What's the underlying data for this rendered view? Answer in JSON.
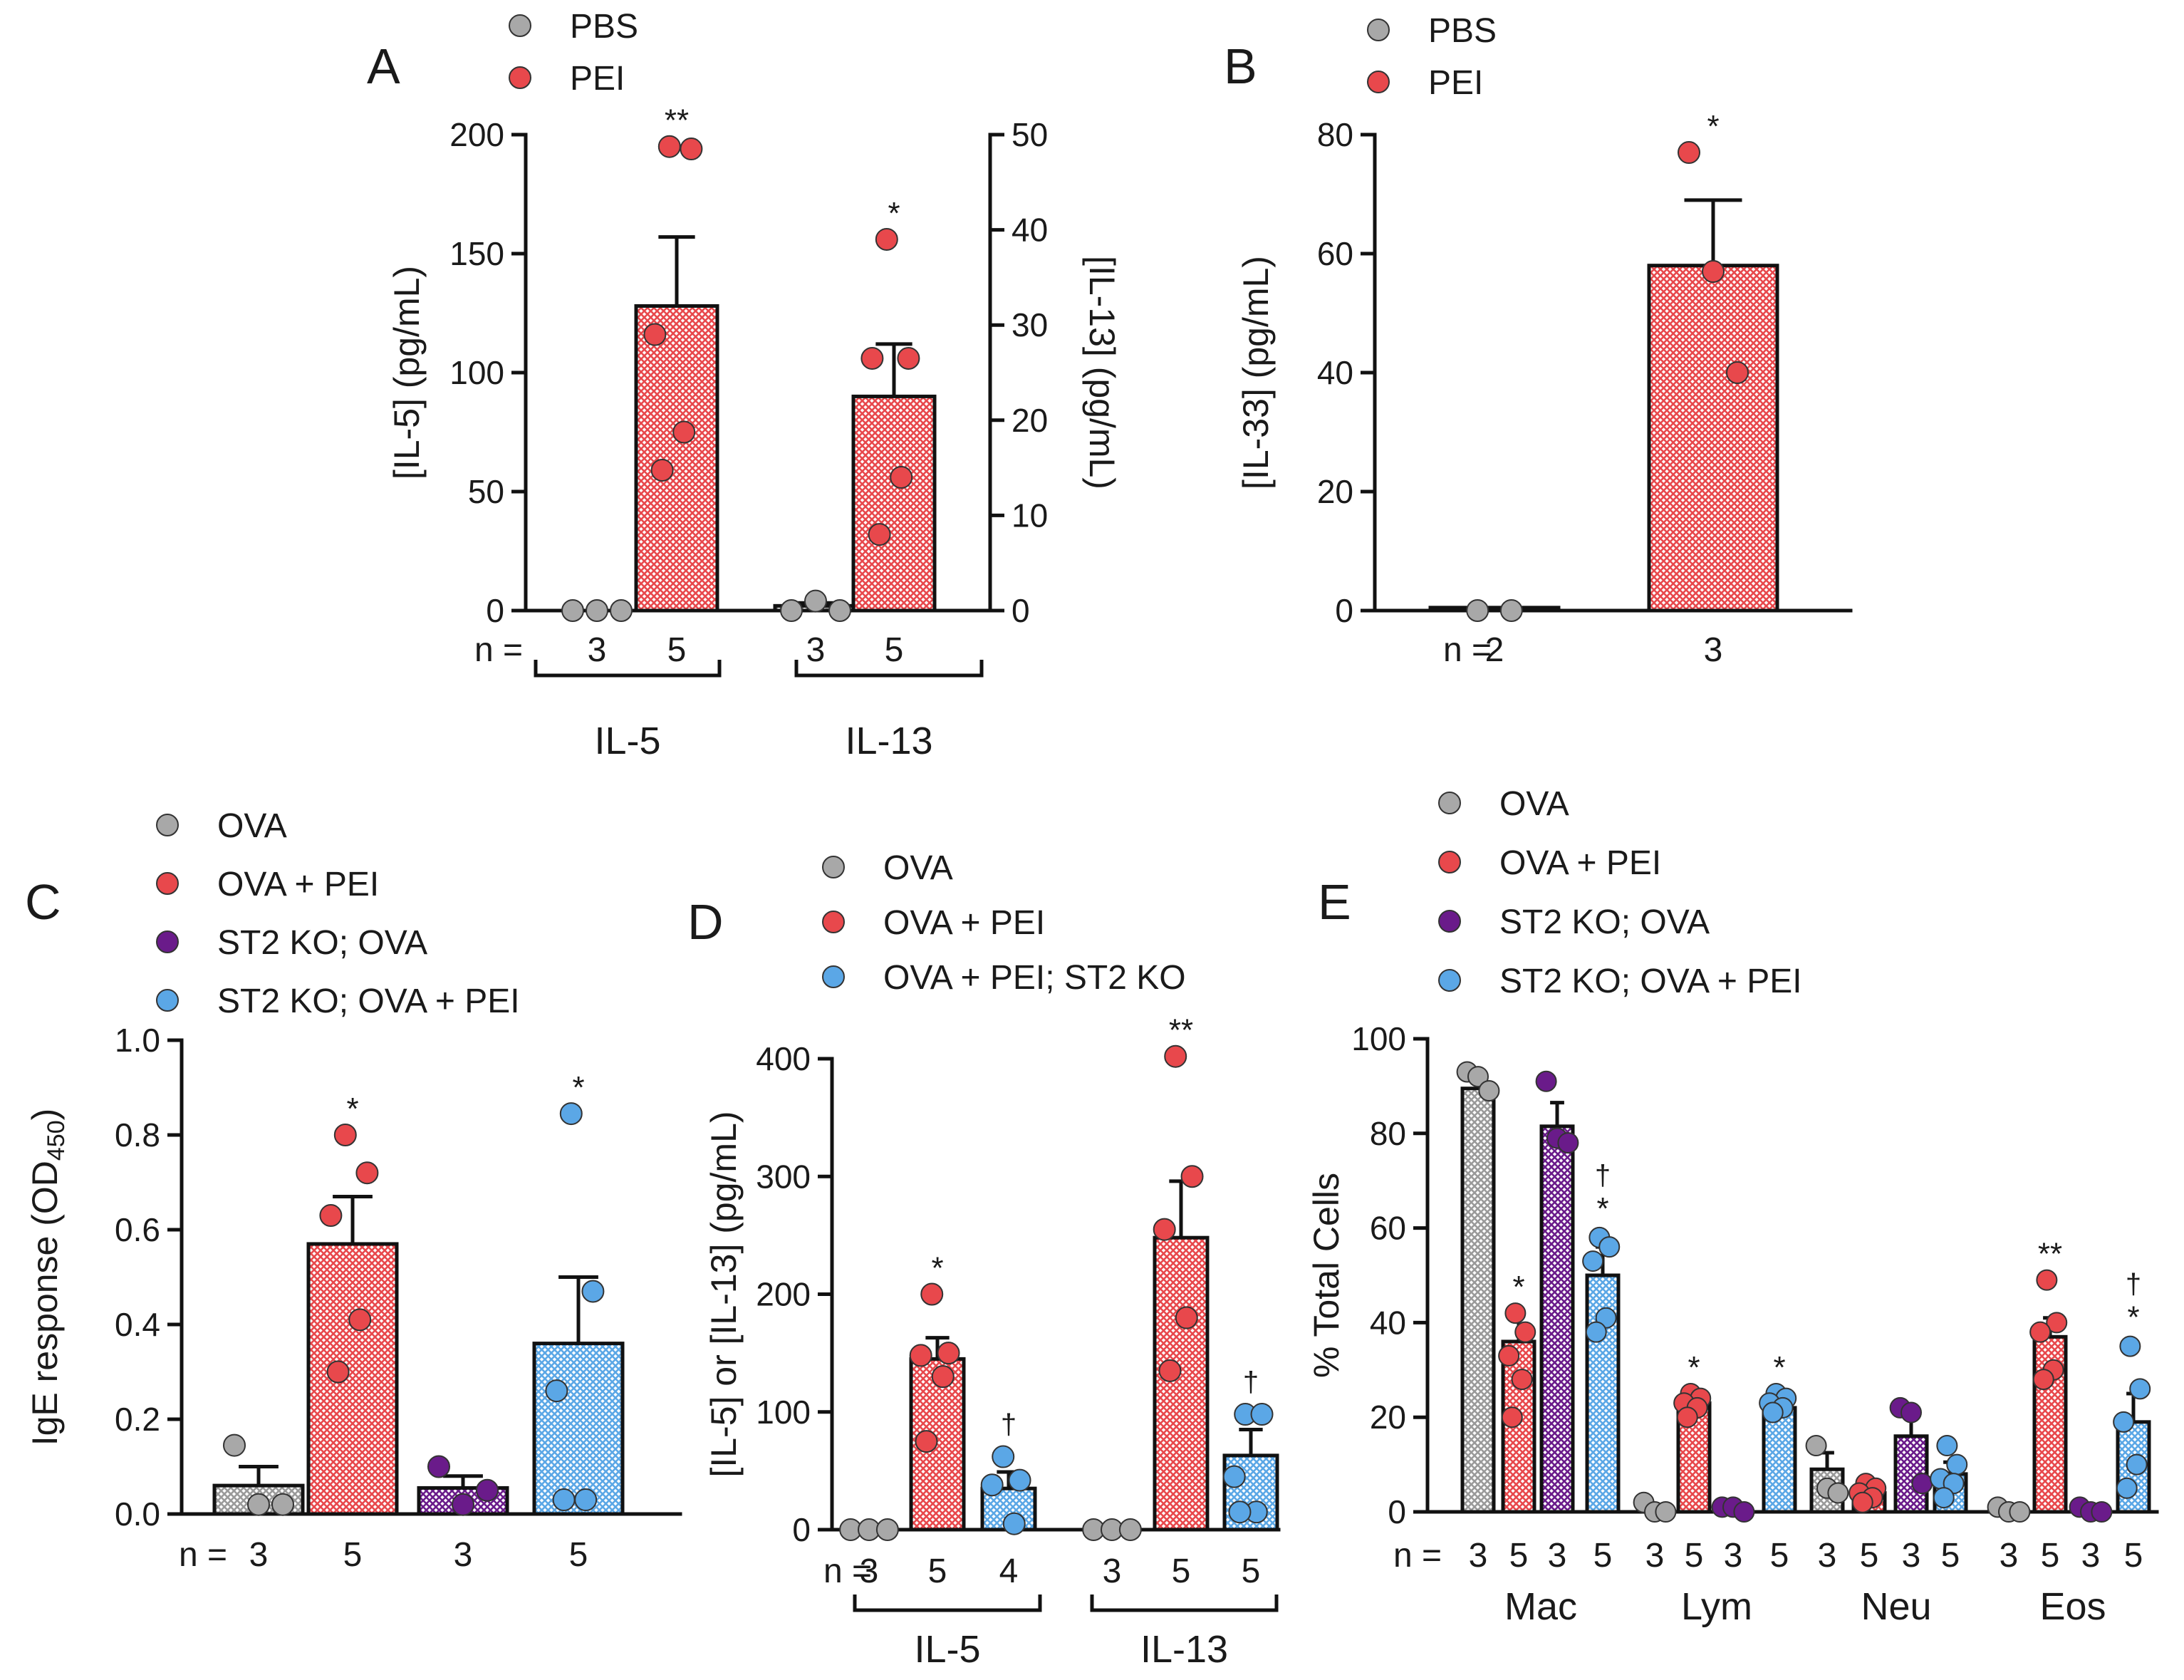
{
  "colors": {
    "gray": "#a8a8a8",
    "red": "#e8484c",
    "purple": "#6a1b8a",
    "blue": "#5ba7e6"
  },
  "chart_data": [
    {
      "id": "A",
      "panel_label": "A",
      "type": "bar",
      "legend": [
        {
          "label": "PBS",
          "color": "gray"
        },
        {
          "label": "PEI",
          "color": "red"
        }
      ],
      "ylabel": "[IL-5] (pg/mL)",
      "ylim": [
        0,
        200
      ],
      "yticks": [
        "0",
        "50",
        "100",
        "150",
        "200"
      ],
      "ylabel_right": "[IL-13] (pg/mL)",
      "ylim_right": [
        0,
        50
      ],
      "yticks_right": [
        "0",
        "10",
        "20",
        "30",
        "40",
        "50"
      ],
      "n_prefix": "n =",
      "groups": [
        "IL-5",
        "IL-13"
      ],
      "bars": [
        {
          "group": "IL-5",
          "series": "PBS",
          "color": "gray",
          "axis": "left",
          "mean": 0,
          "sem": 0,
          "n": "3",
          "points": [
            0,
            0,
            0
          ],
          "sig": ""
        },
        {
          "group": "IL-5",
          "series": "PEI",
          "color": "red",
          "axis": "left",
          "mean": 128,
          "sem": 29,
          "n": "5",
          "points": [
            195,
            194,
            116,
            75,
            59
          ],
          "sig": "**"
        },
        {
          "group": "IL-13",
          "series": "PBS",
          "color": "gray",
          "axis": "right",
          "mean": 0.5,
          "sem": 0.3,
          "n": "3",
          "points": [
            0,
            1,
            0
          ],
          "sig": ""
        },
        {
          "group": "IL-13",
          "series": "PEI",
          "color": "red",
          "axis": "right",
          "mean": 22.5,
          "sem": 5.5,
          "n": "5",
          "points": [
            39,
            26.5,
            26.5,
            14,
            8
          ],
          "sig": "*"
        }
      ]
    },
    {
      "id": "B",
      "panel_label": "B",
      "type": "bar",
      "legend": [
        {
          "label": "PBS",
          "color": "gray"
        },
        {
          "label": "PEI",
          "color": "red"
        }
      ],
      "ylabel": "[IL-33] (pg/mL)",
      "ylim": [
        0,
        80
      ],
      "yticks": [
        "0",
        "20",
        "40",
        "60",
        "80"
      ],
      "n_prefix": "n =",
      "bars": [
        {
          "series": "PBS",
          "color": "gray",
          "mean": 0.5,
          "sem": 0,
          "n": "2",
          "points": [
            0,
            0
          ],
          "sig": ""
        },
        {
          "series": "PEI",
          "color": "red",
          "mean": 58,
          "sem": 11,
          "n": "3",
          "points": [
            77,
            57,
            40
          ],
          "sig": "*"
        }
      ]
    },
    {
      "id": "C",
      "panel_label": "C",
      "type": "bar",
      "legend": [
        {
          "label": "OVA",
          "color": "gray"
        },
        {
          "label": "OVA + PEI",
          "color": "red"
        },
        {
          "label": "ST2 KO; OVA",
          "color": "purple"
        },
        {
          "label": "ST2 KO; OVA + PEI",
          "color": "blue"
        }
      ],
      "ylabel": "IgE response (OD",
      "ylabel_sub": "450",
      "ylabel_tail": ")",
      "ylim": [
        0,
        1.0
      ],
      "yticks": [
        "0.0",
        "0.2",
        "0.4",
        "0.6",
        "0.8",
        "1.0"
      ],
      "n_prefix": "n =",
      "bars": [
        {
          "series": "OVA",
          "color": "gray",
          "mean": 0.06,
          "sem": 0.04,
          "n": "3",
          "points": [
            0.145,
            0.02,
            0.02
          ],
          "sig": ""
        },
        {
          "series": "OVA + PEI",
          "color": "red",
          "mean": 0.57,
          "sem": 0.1,
          "n": "5",
          "points": [
            0.8,
            0.72,
            0.63,
            0.41,
            0.3
          ],
          "sig": "*"
        },
        {
          "series": "ST2 KO; OVA",
          "color": "purple",
          "mean": 0.055,
          "sem": 0.025,
          "n": "3",
          "points": [
            0.1,
            0.02,
            0.05
          ],
          "sig": ""
        },
        {
          "series": "ST2 KO; OVA + PEI",
          "color": "blue",
          "mean": 0.36,
          "sem": 0.14,
          "n": "5",
          "points": [
            0.845,
            0.47,
            0.26,
            0.03,
            0.03
          ],
          "sig": "*"
        }
      ]
    },
    {
      "id": "D",
      "panel_label": "D",
      "type": "bar",
      "legend": [
        {
          "label": "OVA",
          "color": "gray"
        },
        {
          "label": "OVA + PEI",
          "color": "red"
        },
        {
          "label": "OVA + PEI; ST2 KO",
          "color": "blue"
        }
      ],
      "ylabel": "[IL-5] or [IL-13] (pg/mL)",
      "ylim": [
        0,
        400
      ],
      "yticks": [
        "0",
        "100",
        "200",
        "300",
        "400"
      ],
      "n_prefix": "n =",
      "groups": [
        "IL-5",
        "IL-13"
      ],
      "bars": [
        {
          "group": "IL-5",
          "series": "OVA",
          "color": "gray",
          "mean": 0,
          "sem": 0,
          "n": "3",
          "points": [
            0,
            0,
            0
          ],
          "sig": ""
        },
        {
          "group": "IL-5",
          "series": "OVA + PEI",
          "color": "red",
          "mean": 145,
          "sem": 18,
          "n": "5",
          "points": [
            200,
            150,
            148,
            130,
            75
          ],
          "sig": "*"
        },
        {
          "group": "IL-5",
          "series": "OVA + PEI; ST2 KO",
          "color": "blue",
          "mean": 35,
          "sem": 14,
          "n": "4",
          "points": [
            62,
            42,
            38,
            5
          ],
          "sig": "†"
        },
        {
          "group": "IL-13",
          "series": "OVA",
          "color": "gray",
          "mean": 0,
          "sem": 0,
          "n": "3",
          "points": [
            0,
            0,
            0
          ],
          "sig": ""
        },
        {
          "group": "IL-13",
          "series": "OVA + PEI",
          "color": "red",
          "mean": 248,
          "sem": 48,
          "n": "5",
          "points": [
            402,
            300,
            255,
            180,
            135
          ],
          "sig": "**"
        },
        {
          "group": "IL-13",
          "series": "OVA + PEI; ST2 KO",
          "color": "blue",
          "mean": 63,
          "sem": 22,
          "n": "5",
          "points": [
            98,
            98,
            45,
            15,
            15
          ],
          "sig": "†"
        }
      ]
    },
    {
      "id": "E",
      "panel_label": "E",
      "type": "bar",
      "legend": [
        {
          "label": "OVA",
          "color": "gray"
        },
        {
          "label": "OVA + PEI",
          "color": "red"
        },
        {
          "label": "ST2 KO; OVA",
          "color": "purple"
        },
        {
          "label": "ST2 KO; OVA + PEI",
          "color": "blue"
        }
      ],
      "ylabel": "% Total Cells",
      "ylim": [
        0,
        100
      ],
      "yticks": [
        "0",
        "20",
        "40",
        "60",
        "80",
        "100"
      ],
      "n_prefix": "n =",
      "groups": [
        "Mac",
        "Lym",
        "Neu",
        "Eos"
      ],
      "bars": [
        {
          "group": "Mac",
          "series": "OVA",
          "color": "gray",
          "mean": 89.5,
          "sem": 2,
          "n": "3",
          "points": [
            93,
            92,
            89
          ],
          "sig": ""
        },
        {
          "group": "Mac",
          "series": "OVA + PEI",
          "color": "red",
          "mean": 36,
          "sem": 6,
          "n": "5",
          "points": [
            42,
            38,
            33,
            28,
            20
          ],
          "sig": "*"
        },
        {
          "group": "Mac",
          "series": "ST2 KO; OVA",
          "color": "purple",
          "mean": 81.5,
          "sem": 5,
          "n": "3",
          "points": [
            91,
            79,
            78
          ],
          "sig": ""
        },
        {
          "group": "Mac",
          "series": "ST2 KO; OVA + PEI",
          "color": "blue",
          "mean": 50,
          "sem": 6,
          "n": "5",
          "points": [
            58,
            56,
            53,
            41,
            38
          ],
          "sig": "*†"
        },
        {
          "group": "Lym",
          "series": "OVA",
          "color": "gray",
          "mean": 0.5,
          "sem": 0.3,
          "n": "3",
          "points": [
            2,
            0,
            0
          ],
          "sig": ""
        },
        {
          "group": "Lym",
          "series": "OVA + PEI",
          "color": "red",
          "mean": 23,
          "sem": 1.5,
          "n": "5",
          "points": [
            25,
            24,
            23,
            22,
            20
          ],
          "sig": "*"
        },
        {
          "group": "Lym",
          "series": "ST2 KO; OVA",
          "color": "purple",
          "mean": 0.5,
          "sem": 0.3,
          "n": "3",
          "points": [
            1,
            1,
            0
          ],
          "sig": ""
        },
        {
          "group": "Lym",
          "series": "ST2 KO; OVA + PEI",
          "color": "blue",
          "mean": 22,
          "sem": 1,
          "n": "5",
          "points": [
            25,
            24,
            23,
            22,
            21
          ],
          "sig": "*"
        },
        {
          "group": "Neu",
          "series": "OVA",
          "color": "gray",
          "mean": 9,
          "sem": 3.5,
          "n": "3",
          "points": [
            14,
            5,
            4
          ],
          "sig": ""
        },
        {
          "group": "Neu",
          "series": "OVA + PEI",
          "color": "red",
          "mean": 4,
          "sem": 1,
          "n": "5",
          "points": [
            6,
            5,
            4,
            3,
            2
          ],
          "sig": ""
        },
        {
          "group": "Neu",
          "series": "ST2 KO; OVA",
          "color": "purple",
          "mean": 16,
          "sem": 5,
          "n": "3",
          "points": [
            22,
            21,
            6
          ],
          "sig": ""
        },
        {
          "group": "Neu",
          "series": "ST2 KO; OVA + PEI",
          "color": "blue",
          "mean": 8,
          "sem": 2.5,
          "n": "5",
          "points": [
            14,
            10,
            7,
            6,
            3
          ],
          "sig": ""
        },
        {
          "group": "Eos",
          "series": "OVA",
          "color": "gray",
          "mean": 0.5,
          "sem": 0.3,
          "n": "3",
          "points": [
            1,
            0,
            0
          ],
          "sig": ""
        },
        {
          "group": "Eos",
          "series": "OVA + PEI",
          "color": "red",
          "mean": 37,
          "sem": 4,
          "n": "5",
          "points": [
            49,
            40,
            38,
            30,
            28
          ],
          "sig": "**"
        },
        {
          "group": "Eos",
          "series": "ST2 KO; OVA",
          "color": "purple",
          "mean": 0.5,
          "sem": 0.3,
          "n": "3",
          "points": [
            1,
            0,
            0
          ],
          "sig": ""
        },
        {
          "group": "Eos",
          "series": "ST2 KO; OVA + PEI",
          "color": "blue",
          "mean": 19,
          "sem": 6,
          "n": "5",
          "points": [
            35,
            26,
            19,
            10,
            5
          ],
          "sig": "*†"
        }
      ]
    }
  ]
}
